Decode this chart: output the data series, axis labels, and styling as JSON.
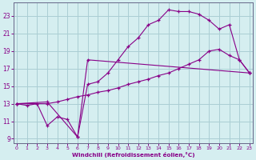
{
  "xlabel": "Windchill (Refroidissement éolien,°C)",
  "background_color": "#d5eef0",
  "grid_color": "#aacdd4",
  "line_color": "#880088",
  "line1_x": [
    0,
    1,
    2,
    3,
    4,
    5,
    6,
    7,
    8,
    9,
    10,
    11,
    12,
    13,
    14,
    15,
    16,
    17,
    18,
    19,
    20,
    21,
    22,
    23
  ],
  "line1_y": [
    13,
    12.8,
    13,
    10.5,
    11.5,
    11.2,
    9.2,
    15.2,
    15.5,
    16.5,
    18.0,
    19.5,
    20.5,
    22.0,
    22.5,
    23.7,
    23.5,
    23.5,
    23.2,
    22.5,
    21.5,
    22.0,
    18.0,
    16.5
  ],
  "line2_x": [
    0,
    3,
    4,
    5,
    6,
    7,
    8,
    9,
    10,
    11,
    12,
    13,
    14,
    15,
    16,
    17,
    18,
    19,
    20,
    21,
    22,
    23
  ],
  "line2_y": [
    13,
    13,
    13.2,
    13.5,
    13.8,
    14.0,
    14.3,
    14.5,
    14.8,
    15.2,
    15.5,
    15.8,
    16.2,
    16.5,
    17.0,
    17.5,
    18.0,
    19.0,
    19.2,
    18.5,
    18.0,
    16.5
  ],
  "line3_x": [
    0,
    3,
    6,
    7,
    23
  ],
  "line3_y": [
    13,
    13.2,
    9.2,
    18.0,
    16.5
  ],
  "ylim": [
    8.5,
    24.5
  ],
  "xlim": [
    -0.3,
    23.3
  ],
  "yticks": [
    9,
    11,
    13,
    15,
    17,
    19,
    21,
    23
  ],
  "xticks": [
    0,
    1,
    2,
    3,
    4,
    5,
    6,
    7,
    8,
    9,
    10,
    11,
    12,
    13,
    14,
    15,
    16,
    17,
    18,
    19,
    20,
    21,
    22,
    23
  ]
}
